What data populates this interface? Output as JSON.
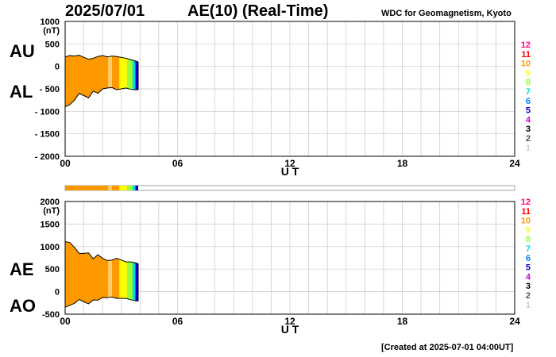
{
  "header": {
    "date": "2025/07/01",
    "title": "AE(10) (Real-Time)",
    "org": "WDC for Geomagnetism, Kyoto"
  },
  "footer": {
    "created": "[Created at 2025-07-01 04:00UT]"
  },
  "station_legend": {
    "labels": [
      "12",
      "11",
      "10",
      "9",
      "8",
      "7",
      "6",
      "5",
      "4",
      "3",
      "2",
      "1"
    ],
    "colors": [
      "#ff0080",
      "#ff0000",
      "#ff9900",
      "#ffff00",
      "#99ff33",
      "#00dddd",
      "#0080ff",
      "#0000cc",
      "#cc00cc",
      "#000000",
      "#555555",
      "#cccccc"
    ]
  },
  "coverage_bar": {
    "segments": [
      {
        "t0": 0.0,
        "t1": 2.3,
        "color": "#ff9900"
      },
      {
        "t0": 2.3,
        "t1": 2.5,
        "color": "#ffcc66"
      },
      {
        "t0": 2.5,
        "t1": 2.9,
        "color": "#ff9900"
      },
      {
        "t0": 2.9,
        "t1": 3.3,
        "color": "#ffff00"
      },
      {
        "t0": 3.3,
        "t1": 3.6,
        "color": "#99ff33"
      },
      {
        "t0": 3.6,
        "t1": 3.75,
        "color": "#00dddd"
      },
      {
        "t0": 3.75,
        "t1": 3.9,
        "color": "#0000cc"
      }
    ]
  },
  "chart_data": [
    {
      "type": "area",
      "panel": "AU/AL",
      "label_top": "AU",
      "label_bottom": "AL",
      "xlabel": "U T",
      "xlim": [
        0,
        24
      ],
      "xticks": [
        "00",
        "06",
        "12",
        "18",
        "24"
      ],
      "ylabel": "(nT)",
      "ylim": [
        -2000,
        1000
      ],
      "yticks": [
        "1000",
        "500",
        "0",
        "- 500",
        "- 1000",
        "- 1500",
        "- 2000"
      ],
      "grid": true,
      "x": [
        0,
        0.25,
        0.5,
        0.75,
        1.0,
        1.25,
        1.5,
        1.75,
        2.0,
        2.25,
        2.5,
        2.75,
        3.0,
        3.25,
        3.5,
        3.75,
        3.9
      ],
      "series": [
        {
          "name": "AU",
          "values": [
            210,
            240,
            230,
            250,
            200,
            160,
            180,
            220,
            240,
            210,
            230,
            220,
            200,
            180,
            150,
            120,
            100
          ]
        },
        {
          "name": "AL",
          "values": [
            -900,
            -850,
            -750,
            -600,
            -650,
            -700,
            -550,
            -600,
            -500,
            -480,
            -470,
            -520,
            -500,
            -480,
            -510,
            -520,
            -520
          ]
        }
      ]
    },
    {
      "type": "area",
      "panel": "AE/AO",
      "label_top": "AE",
      "label_bottom": "AO",
      "xlabel": "U T",
      "xlim": [
        0,
        24
      ],
      "xticks": [
        "00",
        "06",
        "12",
        "18",
        "24"
      ],
      "ylabel": "(nT)",
      "ylim": [
        -500,
        2000
      ],
      "yticks": [
        "2000",
        "1500",
        "1000",
        "500",
        "0",
        "-500"
      ],
      "grid": true,
      "x": [
        0,
        0.25,
        0.5,
        0.75,
        1.0,
        1.25,
        1.5,
        1.75,
        2.0,
        2.25,
        2.5,
        2.75,
        3.0,
        3.25,
        3.5,
        3.75,
        3.9
      ],
      "series": [
        {
          "name": "AE",
          "values": [
            1110,
            1090,
            980,
            850,
            850,
            860,
            730,
            820,
            740,
            690,
            700,
            740,
            700,
            660,
            660,
            640,
            620
          ]
        },
        {
          "name": "AO",
          "values": [
            -345,
            -305,
            -260,
            -175,
            -225,
            -270,
            -185,
            -190,
            -130,
            -135,
            -120,
            -150,
            -150,
            -150,
            -180,
            -200,
            -210
          ]
        }
      ]
    }
  ]
}
